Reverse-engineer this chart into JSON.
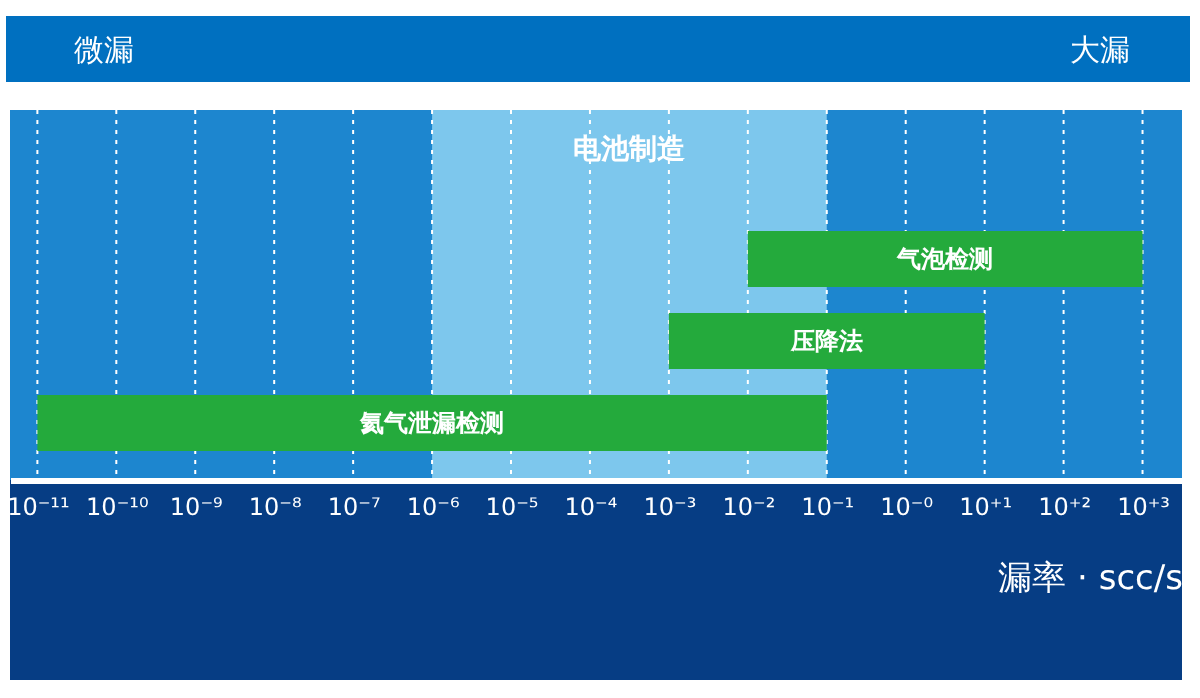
{
  "chart_data": {
    "type": "bar",
    "orientation": "horizontal",
    "xlabel": "漏率 · scc/s",
    "categories": [
      "气泡检测",
      "压降法",
      "氦气泄漏检测"
    ],
    "base": [
      0.01,
      0.001,
      1e-11
    ],
    "values": [
      999.99,
      9.999,
      0.09999999999
    ],
    "colors": [
      "#24aa3c",
      "#24aa3c",
      "#24aa3c"
    ],
    "data_labels": false,
    "log": "x",
    "xlim": [
      4.5e-12,
      3162
    ],
    "xticks": [
      {
        "value": 1e-11,
        "label": "10⁻¹¹"
      },
      {
        "value": 1e-10,
        "label": "10⁻¹⁰"
      },
      {
        "value": 1e-09,
        "label": "10⁻⁹"
      },
      {
        "value": 1e-08,
        "label": "10⁻⁸"
      },
      {
        "value": 1e-07,
        "label": "10⁻⁷"
      },
      {
        "value": 1e-06,
        "label": "10⁻⁶"
      },
      {
        "value": 1e-05,
        "label": "10⁻⁵"
      },
      {
        "value": 0.0001,
        "label": "10⁻⁴"
      },
      {
        "value": 0.001,
        "label": "10⁻³"
      },
      {
        "value": 0.01,
        "label": "10⁻²"
      },
      {
        "value": 0.1,
        "label": "10⁻¹"
      },
      {
        "value": 1,
        "label": "10⁻⁰"
      },
      {
        "value": 10,
        "label": "10⁺¹"
      },
      {
        "value": 100,
        "label": "10⁺²"
      },
      {
        "value": 1000,
        "label": "10⁺³"
      }
    ],
    "grid": "x",
    "bands": [
      {
        "axis": "x",
        "from": 1e-06,
        "to": 0.1,
        "label": "电池制造",
        "color": "#8ed2f2"
      }
    ],
    "annotations": [
      "微漏",
      "大漏"
    ]
  }
}
